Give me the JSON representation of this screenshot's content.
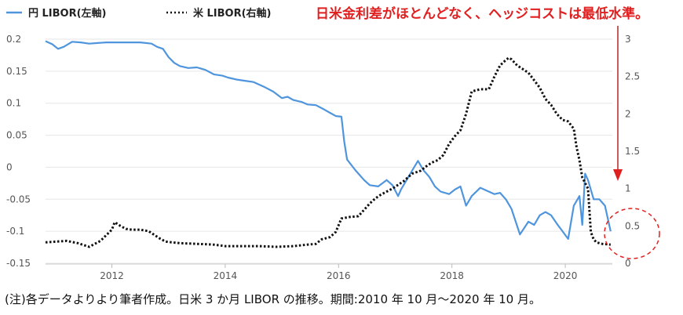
{
  "chart_data": {
    "type": "line",
    "title": "",
    "legend_placement": "top-left",
    "grid": "horizontal",
    "left_axis": {
      "ylim": [
        -0.15,
        0.2
      ],
      "ticks": [
        "0.2",
        "0.15",
        "0.1",
        "0.05",
        "0",
        "-0.05",
        "-0.1",
        "-0.15"
      ]
    },
    "right_axis": {
      "ylim": [
        0,
        3
      ],
      "ticks": [
        "3",
        "2.5",
        "2",
        "1.5",
        "1",
        "0.5",
        "0"
      ]
    },
    "x_axis": {
      "xlim": [
        2010.83,
        2020.83
      ],
      "ticks": [
        "2012",
        "2014",
        "2016",
        "2018",
        "2020"
      ]
    },
    "series": [
      {
        "name": "円 LIBOR(左軸)",
        "axis": "left",
        "color": "#4f95dd",
        "style": "solid",
        "x": [
          2010.83,
          2010.95,
          2011.05,
          2011.15,
          2011.3,
          2011.45,
          2011.6,
          2011.75,
          2011.9,
          2012.1,
          2012.3,
          2012.5,
          2012.7,
          2012.8,
          2012.9,
          2013.0,
          2013.1,
          2013.2,
          2013.35,
          2013.5,
          2013.65,
          2013.8,
          2013.95,
          2014.05,
          2014.2,
          2014.35,
          2014.5,
          2014.7,
          2014.85,
          2015.0,
          2015.1,
          2015.2,
          2015.35,
          2015.45,
          2015.6,
          2015.75,
          2015.85,
          2015.95,
          2016.05,
          2016.1,
          2016.15,
          2016.3,
          2016.45,
          2016.55,
          2016.7,
          2016.85,
          2016.95,
          2017.05,
          2017.1,
          2017.2,
          2017.3,
          2017.4,
          2017.5,
          2017.6,
          2017.7,
          2017.8,
          2017.95,
          2018.05,
          2018.15,
          2018.25,
          2018.35,
          2018.5,
          2018.65,
          2018.75,
          2018.85,
          2018.95,
          2019.05,
          2019.2,
          2019.35,
          2019.45,
          2019.55,
          2019.65,
          2019.75,
          2019.85,
          2019.95,
          2020.05,
          2020.15,
          2020.25,
          2020.3,
          2020.35,
          2020.4,
          2020.5,
          2020.6,
          2020.7,
          2020.8
        ],
        "values": [
          0.197,
          0.192,
          0.185,
          0.188,
          0.196,
          0.195,
          0.193,
          0.194,
          0.195,
          0.195,
          0.195,
          0.195,
          0.193,
          0.188,
          0.185,
          0.172,
          0.163,
          0.158,
          0.155,
          0.156,
          0.152,
          0.145,
          0.143,
          0.14,
          0.137,
          0.135,
          0.133,
          0.125,
          0.118,
          0.108,
          0.11,
          0.105,
          0.102,
          0.098,
          0.097,
          0.09,
          0.085,
          0.08,
          0.079,
          0.04,
          0.012,
          -0.005,
          -0.02,
          -0.028,
          -0.03,
          -0.02,
          -0.028,
          -0.045,
          -0.035,
          -0.02,
          -0.005,
          0.01,
          -0.005,
          -0.015,
          -0.03,
          -0.038,
          -0.042,
          -0.035,
          -0.03,
          -0.06,
          -0.045,
          -0.032,
          -0.038,
          -0.042,
          -0.04,
          -0.05,
          -0.065,
          -0.105,
          -0.085,
          -0.09,
          -0.075,
          -0.07,
          -0.075,
          -0.088,
          -0.1,
          -0.112,
          -0.06,
          -0.045,
          -0.09,
          -0.01,
          -0.02,
          -0.05,
          -0.05,
          -0.06,
          -0.1
        ]
      },
      {
        "name": "米 LIBOR(右軸)",
        "axis": "right",
        "color": "#111111",
        "style": "dotted",
        "x": [
          2010.83,
          2011.0,
          2011.2,
          2011.4,
          2011.6,
          2011.8,
          2012.0,
          2012.05,
          2012.15,
          2012.25,
          2012.35,
          2012.5,
          2012.65,
          2012.75,
          2012.85,
          2012.95,
          2013.2,
          2013.5,
          2013.8,
          2014.0,
          2014.3,
          2014.6,
          2014.9,
          2015.2,
          2015.45,
          2015.6,
          2015.7,
          2015.85,
          2015.95,
          2016.05,
          2016.2,
          2016.35,
          2016.55,
          2016.65,
          2016.75,
          2016.85,
          2016.95,
          2017.05,
          2017.15,
          2017.3,
          2017.45,
          2017.55,
          2017.65,
          2017.75,
          2017.85,
          2017.95,
          2018.05,
          2018.15,
          2018.25,
          2018.35,
          2018.5,
          2018.65,
          2018.75,
          2018.85,
          2018.95,
          2019.0,
          2019.05,
          2019.15,
          2019.25,
          2019.35,
          2019.45,
          2019.55,
          2019.65,
          2019.75,
          2019.85,
          2019.95,
          2020.05,
          2020.15,
          2020.2,
          2020.25,
          2020.3,
          2020.4,
          2020.45,
          2020.5,
          2020.55,
          2020.65,
          2020.8
        ],
        "values": [
          0.28,
          0.29,
          0.3,
          0.27,
          0.22,
          0.3,
          0.45,
          0.55,
          0.5,
          0.46,
          0.45,
          0.45,
          0.43,
          0.38,
          0.33,
          0.29,
          0.27,
          0.26,
          0.25,
          0.23,
          0.23,
          0.23,
          0.22,
          0.23,
          0.25,
          0.26,
          0.32,
          0.35,
          0.42,
          0.6,
          0.62,
          0.63,
          0.8,
          0.87,
          0.92,
          0.96,
          1.0,
          1.05,
          1.1,
          1.2,
          1.24,
          1.3,
          1.35,
          1.38,
          1.45,
          1.6,
          1.7,
          1.78,
          2.0,
          2.3,
          2.33,
          2.33,
          2.5,
          2.65,
          2.72,
          2.75,
          2.73,
          2.65,
          2.6,
          2.55,
          2.45,
          2.35,
          2.2,
          2.12,
          2.0,
          1.92,
          1.9,
          1.8,
          1.55,
          1.38,
          1.15,
          1.0,
          0.42,
          0.32,
          0.28,
          0.26,
          0.25
        ]
      }
    ],
    "annotations": [
      {
        "text": "日米金利差がほとんどなく、ヘッジコストは最低水準。",
        "color": "#e02020"
      }
    ]
  },
  "caption": "(注)各データよりより筆者作成。日米 3 か月 LIBOR の推移。期間:2010 年 10 月〜2020 年 10 月。"
}
